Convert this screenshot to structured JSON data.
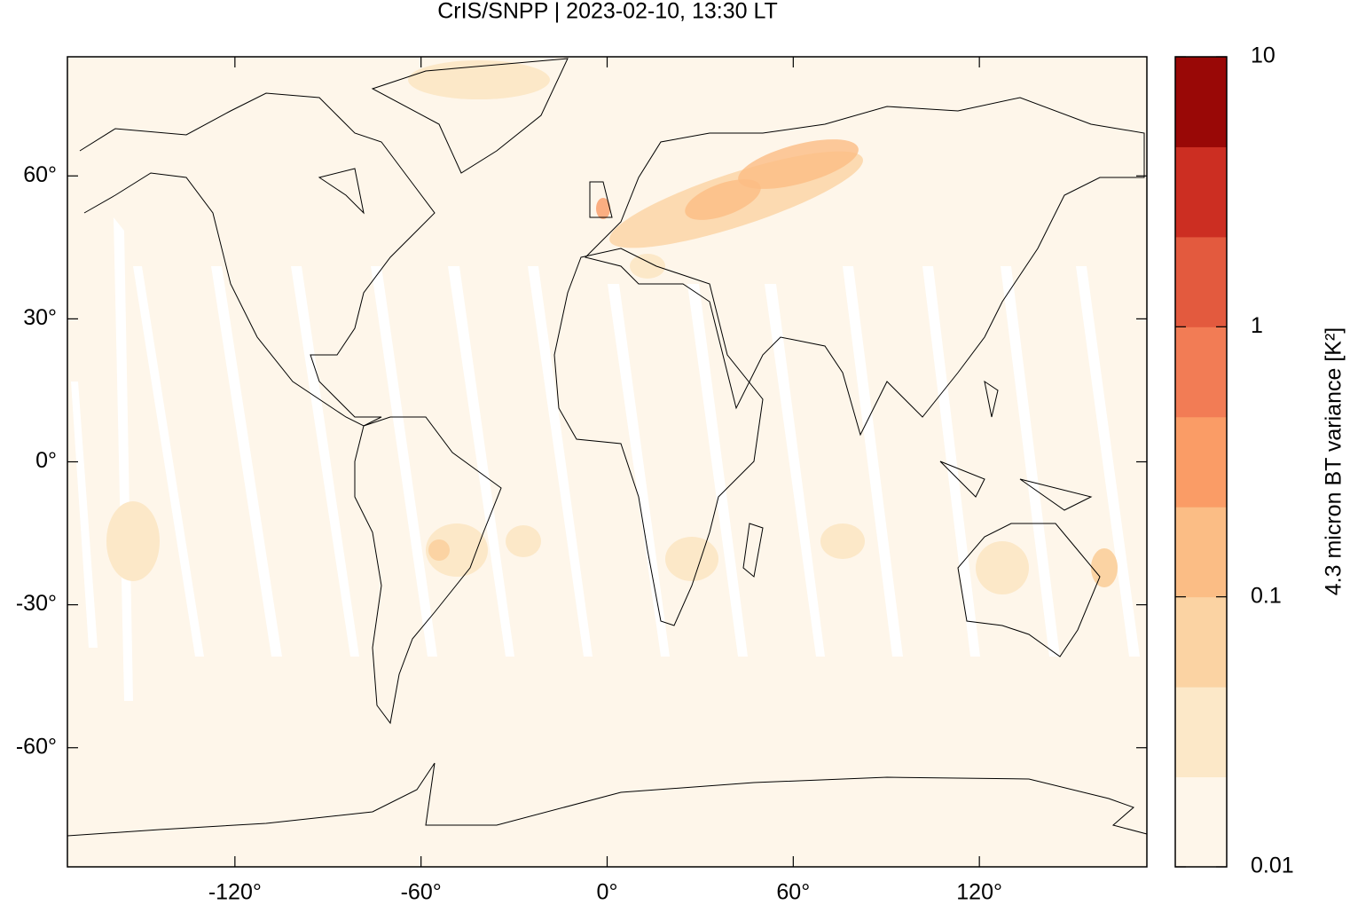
{
  "chart_data": {
    "type": "map",
    "title": "CrIS/SNPP | 2023-02-10, 13:30 LT",
    "xlim": [
      -174,
      174
    ],
    "ylim": [
      -85,
      85
    ],
    "xticks": [
      {
        "value": -120,
        "label": "-120°"
      },
      {
        "value": -60,
        "label": "-60°"
      },
      {
        "value": 0,
        "label": "0°"
      },
      {
        "value": 60,
        "label": "60°"
      },
      {
        "value": 120,
        "label": "120°"
      }
    ],
    "yticks": [
      {
        "value": -60,
        "label": "-60°"
      },
      {
        "value": -30,
        "label": "-30°"
      },
      {
        "value": 0,
        "label": "0°"
      },
      {
        "value": 30,
        "label": "30°"
      },
      {
        "value": 60,
        "label": "60°"
      }
    ],
    "colorbar": {
      "label": "4.3 micron BT variance [K²]",
      "log": true,
      "lim": [
        0.01,
        10
      ],
      "ticks": [
        0.01,
        0.1,
        1,
        10
      ],
      "colors": [
        "#fef6ea",
        "#fce8c8",
        "#fbd3a3",
        "#fbbd85",
        "#fa9c66",
        "#f27c55",
        "#e35a3e",
        "#cc2e22",
        "#990806"
      ]
    }
  }
}
